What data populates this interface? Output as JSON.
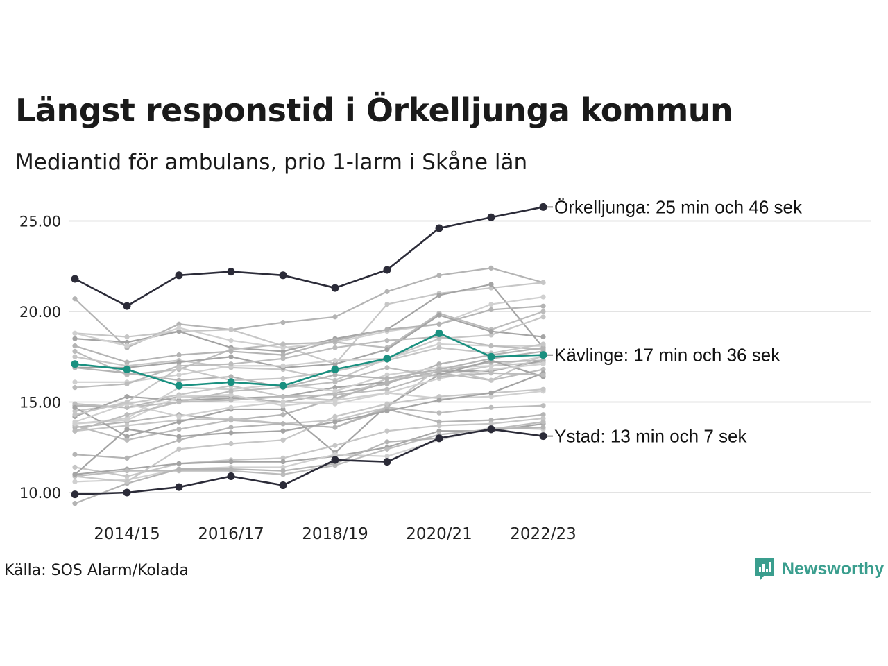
{
  "title": "Längst responstid i Örkelljunga kommun",
  "subtitle": "Mediantid för ambulans, prio 1-larm i Skåne län",
  "source": "Källa: SOS Alarm/Kolada",
  "logo": {
    "text": "Newsworthy",
    "icon": "newsworthy-bar-chart-icon",
    "color": "#3a9e8e"
  },
  "chart_data": {
    "type": "line",
    "title": "Längst responstid i Örkelljunga kommun",
    "subtitle": "Mediantid för ambulans, prio 1-larm i Skåne län",
    "x": [
      "2013/14",
      "2014/15",
      "2015/16",
      "2016/17",
      "2017/18",
      "2018/19",
      "2019/20",
      "2020/21",
      "2021/22",
      "2022/23"
    ],
    "x_tick_labels": [
      "2014/15",
      "2016/17",
      "2018/19",
      "2020/21",
      "2022/23"
    ],
    "y_tick_labels": [
      "10.00",
      "15.00",
      "20.00",
      "25.00"
    ],
    "ylim": [
      9.0,
      26.3
    ],
    "grid": "horizontal",
    "legend": "none",
    "colors": {
      "highlight_dark": "#2b2b38",
      "highlight_teal": "#1a9080",
      "background_lines": [
        "#b4b4b4",
        "#c6c6c6",
        "#a4a4a4",
        "#d0d0d0",
        "#bcbcbc"
      ],
      "gridline": "#e3e3e3"
    },
    "highlight_series": [
      {
        "name": "Örkelljunga",
        "label": "Örkelljunga: 25 min och 46 sek",
        "color": "#2b2b38",
        "values": [
          21.8,
          20.3,
          22.0,
          22.2,
          22.0,
          21.3,
          22.3,
          24.6,
          25.2,
          25.77
        ]
      },
      {
        "name": "Kävlinge",
        "label": "Kävlinge: 17 min och 36 sek",
        "color": "#1a9080",
        "values": [
          17.1,
          16.8,
          15.9,
          16.1,
          15.9,
          16.8,
          17.4,
          18.8,
          17.5,
          17.6
        ]
      },
      {
        "name": "Ystad",
        "label": "Ystad: 13 min och 7 sek",
        "color": "#2b2b38",
        "values": [
          9.9,
          10.0,
          10.3,
          10.9,
          10.4,
          11.8,
          11.7,
          13.0,
          13.5,
          13.12
        ]
      }
    ],
    "background_series": [
      [
        20.7,
        18.0,
        19.3,
        19.0,
        19.4,
        19.7,
        21.1,
        22.0,
        22.4,
        21.6
      ],
      [
        18.8,
        18.6,
        18.9,
        19.0,
        18.1,
        17.1,
        20.4,
        21.0,
        21.3,
        21.6
      ],
      [
        18.5,
        18.3,
        18.9,
        18.0,
        17.8,
        18.5,
        19.0,
        20.9,
        21.5,
        18.0
      ],
      [
        18.8,
        18.1,
        19.1,
        18.4,
        18.0,
        18.3,
        18.9,
        19.3,
        20.4,
        20.8
      ],
      [
        17.8,
        16.5,
        16.8,
        17.9,
        18.2,
        18.3,
        18.0,
        19.9,
        19.0,
        20.0
      ],
      [
        18.1,
        17.2,
        17.6,
        17.8,
        17.6,
        18.4,
        19.0,
        19.3,
        20.1,
        20.3
      ],
      [
        17.5,
        17.0,
        17.3,
        16.9,
        16.8,
        16.2,
        17.4,
        18.5,
        18.7,
        19.7
      ],
      [
        16.9,
        16.9,
        17.2,
        17.5,
        16.9,
        17.1,
        17.9,
        19.8,
        18.9,
        18.6
      ],
      [
        16.1,
        16.1,
        16.5,
        17.0,
        17.0,
        17.3,
        17.4,
        18.2,
        18.1,
        18.1
      ],
      [
        15.8,
        16.0,
        17.0,
        17.1,
        17.4,
        18.0,
        18.4,
        18.6,
        18.1,
        17.9
      ],
      [
        14.8,
        14.7,
        15.3,
        15.3,
        15.0,
        15.5,
        16.0,
        17.1,
        17.6,
        18.0
      ],
      [
        14.5,
        14.9,
        15.4,
        15.9,
        15.3,
        15.1,
        16.3,
        16.5,
        17.0,
        17.2
      ],
      [
        14.2,
        15.3,
        15.1,
        15.2,
        15.3,
        15.8,
        16.1,
        16.7,
        16.7,
        17.3
      ],
      [
        13.8,
        14.1,
        15.8,
        15.7,
        16.0,
        15.6,
        16.5,
        16.9,
        17.0,
        17.5
      ],
      [
        14.9,
        14.7,
        15.0,
        15.1,
        15.3,
        15.4,
        15.7,
        16.6,
        16.2,
        16.8
      ],
      [
        13.6,
        13.9,
        14.3,
        14.0,
        14.3,
        15.2,
        16.1,
        16.7,
        17.2,
        17.3
      ],
      [
        13.4,
        13.7,
        14.0,
        14.1,
        13.8,
        14.0,
        14.7,
        16.9,
        16.2,
        17.6
      ],
      [
        14.7,
        13.1,
        13.9,
        14.6,
        14.6,
        12.2,
        14.8,
        16.5,
        17.3,
        16.4
      ],
      [
        13.9,
        14.9,
        14.2,
        14.7,
        15.0,
        14.9,
        15.5,
        15.2,
        15.3,
        15.6
      ],
      [
        13.7,
        12.9,
        13.5,
        14.0,
        13.8,
        13.6,
        14.7,
        14.4,
        14.7,
        14.8
      ],
      [
        12.1,
        11.9,
        12.9,
        13.6,
        13.8,
        13.6,
        14.6,
        13.9,
        14.0,
        14.3
      ],
      [
        11.4,
        10.9,
        11.6,
        11.8,
        11.9,
        12.6,
        13.4,
        13.7,
        13.8,
        14.1
      ],
      [
        11.0,
        11.3,
        11.6,
        11.7,
        11.7,
        12.0,
        12.5,
        13.4,
        13.4,
        13.8
      ],
      [
        10.6,
        10.7,
        11.3,
        11.4,
        11.4,
        12.1,
        12.0,
        12.9,
        13.6,
        13.5
      ],
      [
        10.9,
        11.2,
        11.2,
        11.2,
        11.0,
        11.5,
        12.4,
        13.2,
        13.5,
        13.9
      ],
      [
        9.4,
        10.5,
        11.3,
        11.3,
        11.2,
        11.6,
        12.8,
        13.0,
        13.5,
        13.6
      ],
      [
        10.9,
        10.6,
        12.4,
        12.7,
        12.9,
        14.2,
        14.9,
        15.3,
        15.5,
        15.7
      ],
      [
        11.0,
        13.5,
        13.1,
        13.3,
        13.4,
        13.9,
        14.5,
        15.1,
        15.5,
        16.6
      ],
      [
        13.8,
        14.0,
        15.3,
        15.4,
        14.8,
        15.1,
        15.5,
        16.3,
        16.8,
        17.1
      ],
      [
        13.4,
        14.3,
        15.0,
        15.6,
        15.8,
        16.1,
        16.9,
        16.4,
        16.6,
        16.5
      ],
      [
        16.9,
        16.6,
        16.2,
        16.4,
        15.8,
        16.5,
        16.3,
        16.8,
        17.4,
        17.8
      ],
      [
        14.3,
        15.0,
        16.9,
        16.2,
        16.3,
        16.7,
        17.3,
        18.0,
        17.7,
        18.2
      ]
    ]
  }
}
